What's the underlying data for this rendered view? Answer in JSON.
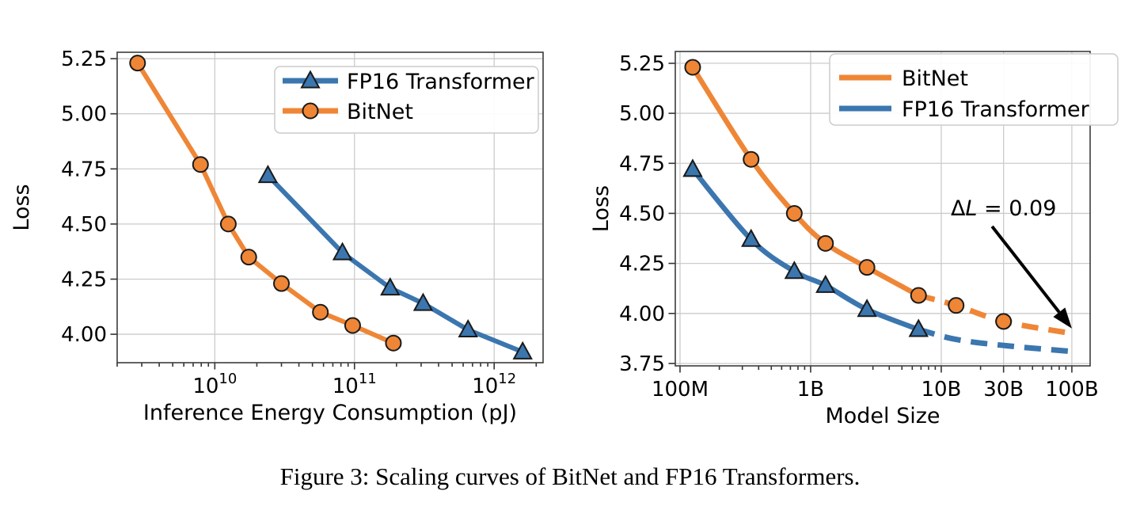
{
  "page": {
    "caption": "Figure 3: Scaling curves of BitNet and FP16 Transformers."
  },
  "colors": {
    "bitnet": "#EF8636",
    "fp16": "#3B76AF",
    "grid": "#CBCBCB",
    "spine": "#3C3C3C",
    "tick": "#333333",
    "marker_edge": "#1A1A1A",
    "legend_border": "#CCCCCC",
    "annotation": "#000000"
  },
  "chart_data": [
    {
      "id": "energy-loss",
      "type": "line",
      "title": "",
      "xlabel": "Inference Energy Consumption (pJ)",
      "ylabel": "Loss",
      "xscale": "log",
      "xlim": [
        2000000000.0,
        2240000000000.0
      ],
      "ylim": [
        3.871,
        5.279
      ],
      "grid": true,
      "xticks": [
        {
          "v": 10000000000.0,
          "base": "10",
          "exp": "10"
        },
        {
          "v": 100000000000.0,
          "base": "10",
          "exp": "11"
        },
        {
          "v": 1000000000000.0,
          "base": "10",
          "exp": "12"
        }
      ],
      "yticks": [
        {
          "v": 4.0,
          "label": "4.00"
        },
        {
          "v": 4.25,
          "label": "4.25"
        },
        {
          "v": 4.5,
          "label": "4.50"
        },
        {
          "v": 4.75,
          "label": "4.75"
        },
        {
          "v": 5.0,
          "label": "5.00"
        },
        {
          "v": 5.25,
          "label": "5.25"
        }
      ],
      "legend": {
        "position": "upper right",
        "entries": [
          "fp16",
          "bitnet"
        ],
        "show_markers": true
      },
      "series": [
        {
          "key": "fp16",
          "name": "FP16 Transformer",
          "marker": "triangle",
          "smooth": false,
          "x": [
            24000000000.0,
            82000000000.0,
            180000000000.0,
            310000000000.0,
            650000000000.0,
            1600000000000.0
          ],
          "y": [
            4.72,
            4.37,
            4.21,
            4.14,
            4.02,
            3.92
          ]
        },
        {
          "key": "bitnet",
          "name": "BitNet",
          "marker": "circle",
          "smooth": false,
          "x": [
            2800000000.0,
            7900000000.0,
            12500000000.0,
            17500000000.0,
            30000000000.0,
            57000000000.0,
            97000000000.0,
            190000000000.0
          ],
          "y": [
            5.23,
            4.77,
            4.5,
            4.35,
            4.23,
            4.1,
            4.04,
            3.96
          ]
        }
      ]
    },
    {
      "id": "modelsize-loss",
      "type": "line",
      "title": "",
      "xlabel": "Model Size",
      "ylabel": "Loss",
      "xscale": "log",
      "xlim": [
        92000000.0,
        138000000000.0
      ],
      "ylim": [
        3.738,
        5.309
      ],
      "grid": true,
      "xticks": [
        {
          "v": 100000000.0,
          "label": "100M"
        },
        {
          "v": 1000000000.0,
          "label": "1B"
        },
        {
          "v": 10000000000.0,
          "label": "10B"
        },
        {
          "v": 30000000000.0,
          "label": "30B"
        },
        {
          "v": 100000000000.0,
          "label": "100B"
        }
      ],
      "yticks": [
        {
          "v": 3.75,
          "label": "3.75"
        },
        {
          "v": 4.0,
          "label": "4.00"
        },
        {
          "v": 4.25,
          "label": "4.25"
        },
        {
          "v": 4.5,
          "label": "4.50"
        },
        {
          "v": 4.75,
          "label": "4.75"
        },
        {
          "v": 5.0,
          "label": "5.00"
        },
        {
          "v": 5.25,
          "label": "5.25"
        }
      ],
      "legend": {
        "position": "upper right",
        "entries": [
          "bitnet",
          "fp16"
        ],
        "show_markers": false
      },
      "series": [
        {
          "key": "bitnet",
          "name": "BitNet",
          "marker": "circle",
          "smooth": true,
          "x": [
            125000000.0,
            350000000.0,
            750000000.0,
            1300000000.0,
            2700000000.0,
            6700000000.0
          ],
          "y": [
            5.23,
            4.77,
            4.5,
            4.35,
            4.23,
            4.09
          ],
          "dashed": {
            "x": [
              6700000000.0,
              13000000000.0,
              30000000000.0,
              100000000000.0
            ],
            "y": [
              4.09,
              4.04,
              3.96,
              3.9
            ],
            "marker_x": [
              13000000000.0,
              30000000000.0
            ],
            "marker_y": [
              4.04,
              3.96
            ]
          }
        },
        {
          "key": "fp16",
          "name": "FP16 Transformer",
          "marker": "triangle",
          "smooth": true,
          "x": [
            125000000.0,
            350000000.0,
            750000000.0,
            1300000000.0,
            2700000000.0,
            6700000000.0
          ],
          "y": [
            4.72,
            4.37,
            4.21,
            4.14,
            4.02,
            3.92
          ],
          "dashed": {
            "x": [
              6700000000.0,
              13000000000.0,
              30000000000.0,
              100000000000.0
            ],
            "y": [
              3.92,
              3.87,
              3.84,
              3.81
            ]
          }
        }
      ],
      "annotation": {
        "segments": [
          {
            "text": "Δ"
          },
          {
            "text": "L",
            "italic": true
          },
          {
            "text": " = 0.09"
          }
        ],
        "text_xy": [
          30000000000.0,
          4.525
        ],
        "arrow_from": [
          24500000000.0,
          4.435
        ],
        "arrow_to": [
          100000000000.0,
          3.925
        ]
      }
    }
  ]
}
